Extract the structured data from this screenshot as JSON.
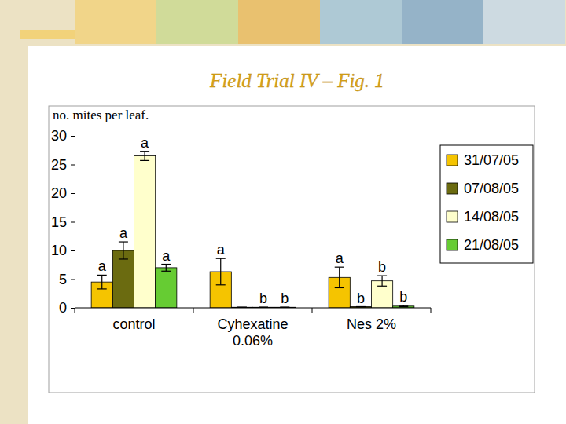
{
  "chart_data": {
    "type": "bar",
    "title": "Field Trial IV – Fig. 1",
    "ylabel": "no. mites per leaf.",
    "categories": [
      "control",
      "Cyhexatine\n0.06%",
      "Nes 2%"
    ],
    "series": [
      {
        "name": "31/07/05",
        "color": "#f5c400",
        "values": [
          4.5,
          6.3,
          5.3
        ],
        "errors": [
          1.2,
          2.3,
          1.8
        ],
        "letters": [
          "a",
          "a",
          "a"
        ]
      },
      {
        "name": "07/08/05",
        "color": "#6b6b10",
        "values": [
          10,
          0.1,
          0.2
        ],
        "errors": [
          1.5,
          0,
          0
        ],
        "letters": [
          "a",
          null,
          "b"
        ]
      },
      {
        "name": "14/08/05",
        "color": "#ffffcc",
        "values": [
          26.5,
          0.1,
          4.7
        ],
        "errors": [
          0.8,
          0,
          0.9
        ],
        "letters": [
          "a",
          "b",
          "b"
        ]
      },
      {
        "name": "21/08/05",
        "color": "#66cc33",
        "values": [
          7,
          0.1,
          0.3
        ],
        "errors": [
          0.6,
          0,
          0.1
        ],
        "letters": [
          "a",
          "b",
          "b"
        ]
      }
    ],
    "ylim": [
      0,
      30
    ],
    "yticks": [
      0,
      5,
      10,
      15,
      20,
      25,
      30
    ],
    "legend": "right",
    "grid": false
  }
}
